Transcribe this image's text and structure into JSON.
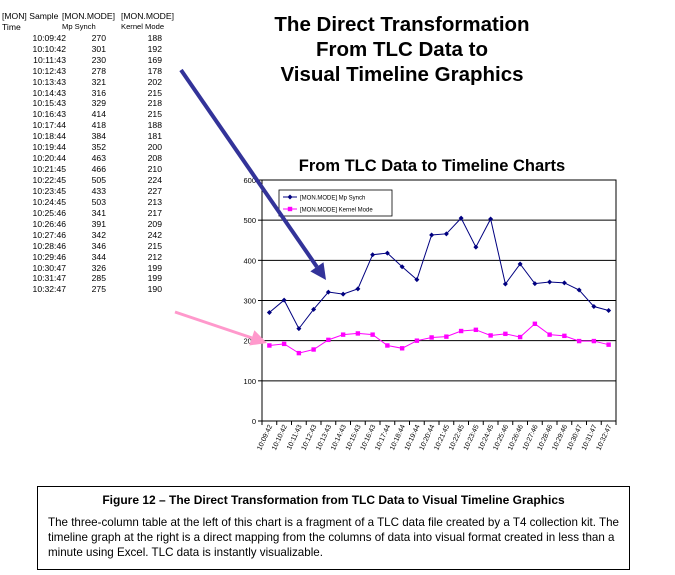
{
  "table": {
    "headers": [
      [
        "[MON] Sample",
        "Time"
      ],
      [
        "[MON.MODE]",
        "Mp Synch"
      ],
      [
        "[MON.MODE]",
        "Kernel Mode"
      ]
    ],
    "rows": [
      [
        "10:09:42",
        "270",
        "188"
      ],
      [
        "10:10:42",
        "301",
        "192"
      ],
      [
        "10:11:43",
        "230",
        "169"
      ],
      [
        "10:12:43",
        "278",
        "178"
      ],
      [
        "10:13:43",
        "321",
        "202"
      ],
      [
        "10:14:43",
        "316",
        "215"
      ],
      [
        "10:15:43",
        "329",
        "218"
      ],
      [
        "10:16:43",
        "414",
        "215"
      ],
      [
        "10:17:44",
        "418",
        "188"
      ],
      [
        "10:18:44",
        "384",
        "181"
      ],
      [
        "10:19:44",
        "352",
        "200"
      ],
      [
        "10:20:44",
        "463",
        "208"
      ],
      [
        "10:21:45",
        "466",
        "210"
      ],
      [
        "10:22:45",
        "505",
        "224"
      ],
      [
        "10:23:45",
        "433",
        "227"
      ],
      [
        "10:24:45",
        "503",
        "213"
      ],
      [
        "10:25:46",
        "341",
        "217"
      ],
      [
        "10:26:46",
        "391",
        "209"
      ],
      [
        "10:27:46",
        "342",
        "242"
      ],
      [
        "10:28:46",
        "346",
        "215"
      ],
      [
        "10:29:46",
        "344",
        "212"
      ],
      [
        "10:30:47",
        "326",
        "199"
      ],
      [
        "10:31:47",
        "285",
        "199"
      ],
      [
        "10:32:47",
        "275",
        "190"
      ]
    ]
  },
  "main_title": [
    "The Direct Transformation",
    "From TLC Data to",
    "Visual Timeline Graphics"
  ],
  "caption": {
    "title": "Figure 12 – The Direct Transformation from TLC Data to Visual Timeline Graphics",
    "body": "The three-column table at the left of this chart is a fragment of a TLC data file created by a T4 collection kit.  The timeline graph at the right is a direct mapping from the columns of data into visual format created in less than a minute using Excel.  TLC data is instantly visualizable."
  },
  "chart_data": {
    "type": "line",
    "title": "From TLC Data to Timeline Charts",
    "x": [
      "10:09:42",
      "10:10:42",
      "10:11:43",
      "10:12:43",
      "10:13:43",
      "10:14:43",
      "10:15:43",
      "10:16:43",
      "10:17:44",
      "10:18:44",
      "10:19:44",
      "10:20:44",
      "10:21:45",
      "10:22:45",
      "10:23:45",
      "10:24:45",
      "10:25:46",
      "10:26:46",
      "10:27:46",
      "10:28:46",
      "10:29:46",
      "10:30:47",
      "10:31:47",
      "10:32:47"
    ],
    "series": [
      {
        "name": "[MON.MODE] Mp Synch",
        "color": "#000080",
        "marker": "diamond",
        "values": [
          270,
          301,
          230,
          278,
          321,
          316,
          329,
          414,
          418,
          384,
          352,
          463,
          466,
          505,
          433,
          503,
          341,
          391,
          342,
          346,
          344,
          326,
          285,
          275
        ]
      },
      {
        "name": "[MON.MODE] Kernel Mode",
        "color": "#ff00ff",
        "marker": "square",
        "values": [
          188,
          192,
          169,
          178,
          202,
          215,
          218,
          215,
          188,
          181,
          200,
          208,
          210,
          224,
          227,
          213,
          217,
          209,
          242,
          215,
          212,
          199,
          199,
          190
        ]
      }
    ],
    "ylim": [
      0,
      600
    ],
    "yticks": [
      0,
      100,
      200,
      300,
      400,
      500,
      600
    ],
    "grid": "horizontal",
    "legend": "top-left",
    "xlabel": "",
    "ylabel": ""
  },
  "arrows": {
    "blue": "#333399",
    "pink": "#ff99cc"
  }
}
